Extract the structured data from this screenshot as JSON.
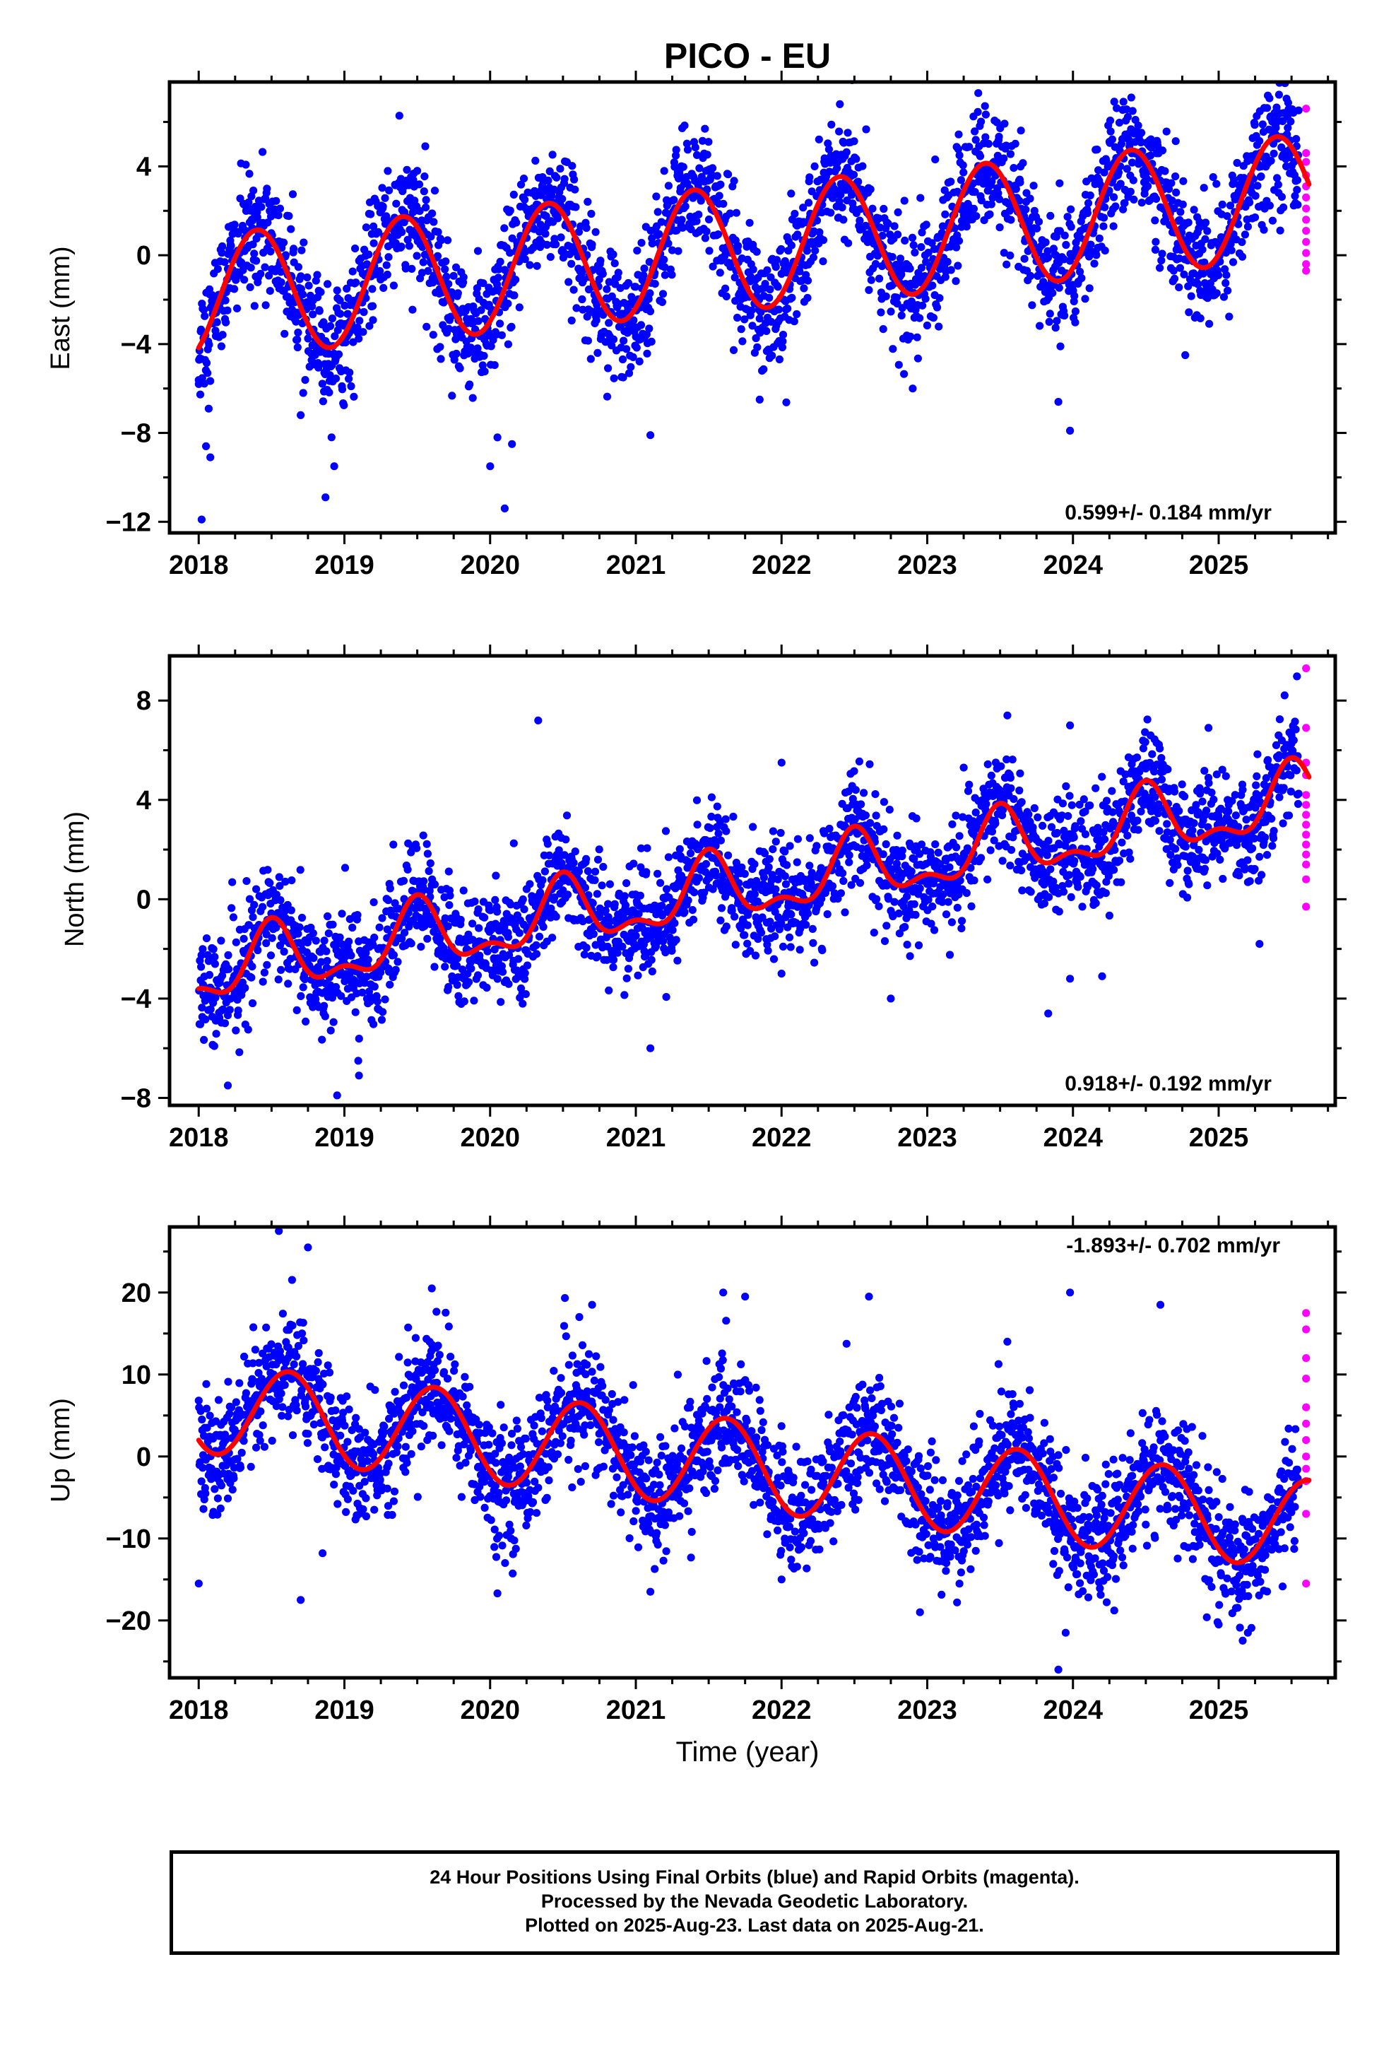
{
  "title": "PICO - EU",
  "xlabel": "Time (year)",
  "footer": {
    "line1": "24 Hour Positions Using Final Orbits (blue) and Rapid Orbits (magenta).",
    "line2": "Processed by the Nevada Geodetic Laboratory.",
    "line3": "Plotted on 2025-Aug-23. Last data on 2025-Aug-21."
  },
  "colors": {
    "final": "#0000ff",
    "rapid": "#ff00ff",
    "model": "#ff0000"
  },
  "chart_data": [
    {
      "type": "scatter",
      "ylabel": "East (mm)",
      "xlim": [
        2017.8,
        2025.8
      ],
      "ylim": [
        -12.5,
        7.8
      ],
      "xticks": [
        2018,
        2019,
        2020,
        2021,
        2022,
        2023,
        2024,
        2025
      ],
      "yticks": [
        -12,
        -8,
        -4,
        0,
        4
      ],
      "rate_label": "0.599+/- 0.184 mm/yr",
      "rate_position": "bottom-right",
      "model": {
        "mean_2018": -1.9,
        "trend": 0.6,
        "amplitude": 2.8,
        "peak_phase": 0.4,
        "start": 2018.0,
        "end": 2025.62
      },
      "scatter_noise_mm": 1.4,
      "final_orbits": {
        "start": 2018.0,
        "end": 2025.55,
        "points": [
          [
            2018.0,
            -5.8
          ],
          [
            2018.02,
            -11.9
          ],
          [
            2018.05,
            -8.6
          ],
          [
            2018.08,
            -9.1
          ],
          [
            2018.3,
            1.2
          ],
          [
            2018.7,
            -7.2
          ],
          [
            2018.87,
            -10.9
          ],
          [
            2018.93,
            -9.5
          ],
          [
            2019.5,
            3.8
          ],
          [
            2020.0,
            -9.5
          ],
          [
            2020.05,
            -8.2
          ],
          [
            2020.1,
            -11.4
          ],
          [
            2020.15,
            -8.5
          ],
          [
            2021.1,
            -8.1
          ],
          [
            2021.4,
            5.1
          ],
          [
            2021.85,
            -6.5
          ],
          [
            2022.4,
            6.8
          ],
          [
            2022.9,
            -6.0
          ],
          [
            2023.35,
            7.3
          ],
          [
            2023.9,
            -6.6
          ],
          [
            2023.98,
            -7.9
          ],
          [
            2024.4,
            7.1
          ],
          [
            2025.4,
            6.0
          ]
        ]
      },
      "rapid_orbits": {
        "x": 2025.6,
        "y": [
          6.6,
          4.6,
          4.2,
          3.6,
          3.1,
          2.6,
          2.1,
          1.6,
          1.1,
          0.6,
          0.1,
          -0.4,
          -0.7
        ]
      }
    },
    {
      "type": "scatter",
      "ylabel": "North (mm)",
      "xlim": [
        2017.8,
        2025.8
      ],
      "ylim": [
        -8.3,
        9.8
      ],
      "xticks": [
        2018,
        2019,
        2020,
        2021,
        2022,
        2023,
        2024,
        2025
      ],
      "yticks": [
        -8,
        -4,
        0,
        4,
        8
      ],
      "rate_label": "0.918+/- 0.192 mm/yr",
      "rate_position": "bottom-right",
      "model": {
        "mean_2018": -3.0,
        "trend": 0.92,
        "amplitude": 1.2,
        "peak_phase": 0.5,
        "amplitude2": 0.6,
        "start": 2018.0,
        "end": 2025.62
      },
      "scatter_noise_mm": 1.1,
      "final_orbits": {
        "start": 2018.0,
        "end": 2025.55,
        "points": [
          [
            2018.2,
            -7.5
          ],
          [
            2018.95,
            -7.9
          ],
          [
            2019.1,
            -7.1
          ],
          [
            2020.33,
            7.2
          ],
          [
            2021.1,
            -6.0
          ],
          [
            2022.0,
            5.5
          ],
          [
            2022.75,
            -4.0
          ],
          [
            2023.25,
            5.3
          ],
          [
            2023.55,
            7.4
          ],
          [
            2023.83,
            -4.6
          ],
          [
            2023.98,
            7.0
          ],
          [
            2023.98,
            -3.2
          ],
          [
            2024.2,
            -3.1
          ],
          [
            2024.93,
            6.9
          ],
          [
            2025.28,
            -1.8
          ],
          [
            2025.5,
            6.6
          ]
        ]
      },
      "rapid_orbits": {
        "x": 2025.6,
        "y": [
          9.3,
          6.9,
          5.5,
          5.0,
          4.2,
          3.8,
          3.4,
          3.0,
          2.6,
          2.2,
          1.8,
          1.4,
          0.8,
          -0.3
        ]
      }
    },
    {
      "type": "scatter",
      "ylabel": "Up (mm)",
      "xlim": [
        2017.8,
        2025.8
      ],
      "ylim": [
        -27.0,
        28.0
      ],
      "xticks": [
        2018,
        2019,
        2020,
        2021,
        2022,
        2023,
        2024,
        2025
      ],
      "yticks": [
        -20,
        -10,
        0,
        10,
        20
      ],
      "rate_label": "-1.893+/- 0.702 mm/yr",
      "rate_position": "top-right",
      "model": {
        "mean_2018": 6.0,
        "trend": -1.89,
        "amplitude": 5.5,
        "peak_phase": 0.62,
        "start": 2018.0,
        "end": 2025.62
      },
      "scatter_noise_mm": 3.6,
      "final_orbits": {
        "start": 2018.0,
        "end": 2025.55,
        "points": [
          [
            2018.0,
            -15.5
          ],
          [
            2018.55,
            27.5
          ],
          [
            2018.75,
            25.5
          ],
          [
            2018.7,
            -17.5
          ],
          [
            2018.85,
            -11.8
          ],
          [
            2019.6,
            20.5
          ],
          [
            2020.05,
            -16.7
          ],
          [
            2020.7,
            18.5
          ],
          [
            2021.1,
            -16.5
          ],
          [
            2021.6,
            20.0
          ],
          [
            2021.75,
            19.5
          ],
          [
            2022.0,
            -15.0
          ],
          [
            2022.6,
            19.5
          ],
          [
            2022.95,
            -19.0
          ],
          [
            2023.55,
            14.0
          ],
          [
            2023.98,
            20.0
          ],
          [
            2023.95,
            -21.5
          ],
          [
            2023.9,
            -26.0
          ],
          [
            2024.6,
            18.5
          ],
          [
            2025.0,
            -20.5
          ],
          [
            2025.2,
            -21.5
          ]
        ]
      },
      "rapid_orbits": {
        "x": 2025.6,
        "y": [
          17.5,
          15.5,
          12.0,
          9.5,
          6.0,
          4.0,
          2.0,
          0.0,
          -1.5,
          -3.0,
          -7.0,
          -15.5
        ]
      }
    }
  ]
}
